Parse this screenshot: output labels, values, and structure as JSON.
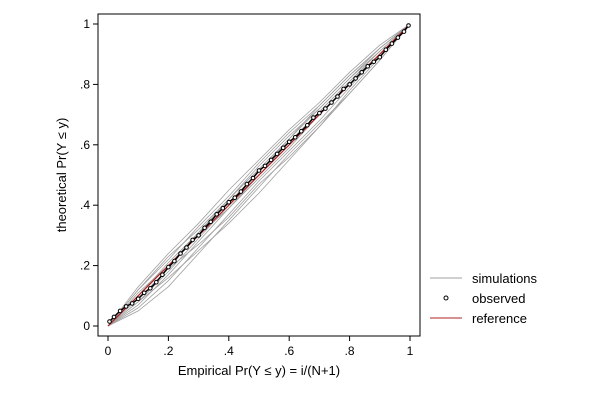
{
  "chart_data": {
    "type": "line",
    "xlabel": "Empirical Pr(Y ≤ y) = i/(N+1)",
    "ylabel": "theoretical Pr(Y ≤ y)",
    "xlim": [
      0,
      1
    ],
    "ylim": [
      0,
      1
    ],
    "x_ticks": [
      {
        "value": 0,
        "label": "0"
      },
      {
        "value": 0.2,
        "label": ".2"
      },
      {
        "value": 0.4,
        "label": ".4"
      },
      {
        "value": 0.6,
        "label": ".6"
      },
      {
        "value": 0.8,
        "label": ".8"
      },
      {
        "value": 1,
        "label": "1"
      }
    ],
    "y_ticks": [
      {
        "value": 0,
        "label": "0"
      },
      {
        "value": 0.2,
        "label": ".2"
      },
      {
        "value": 0.4,
        "label": ".4"
      },
      {
        "value": 0.6,
        "label": ".6"
      },
      {
        "value": 0.8,
        "label": ".8"
      },
      {
        "value": 1,
        "label": "1"
      }
    ],
    "grid": false,
    "legend_position": "right",
    "legend": [
      {
        "label": "simulations",
        "style": "line",
        "color": "#a0a0a0"
      },
      {
        "label": "observed",
        "style": "marker",
        "color": "#000000"
      },
      {
        "label": "reference",
        "style": "line",
        "color": "#b22222"
      }
    ],
    "series": [
      {
        "name": "reference",
        "color": "#b22222",
        "x": [
          0,
          1
        ],
        "y": [
          0,
          1
        ]
      },
      {
        "name": "observed",
        "color": "#000000",
        "x": [
          0.005,
          0.02,
          0.04,
          0.06,
          0.08,
          0.1,
          0.12,
          0.14,
          0.16,
          0.18,
          0.2,
          0.22,
          0.24,
          0.26,
          0.28,
          0.3,
          0.32,
          0.34,
          0.36,
          0.38,
          0.4,
          0.42,
          0.44,
          0.46,
          0.48,
          0.5,
          0.52,
          0.54,
          0.56,
          0.58,
          0.6,
          0.62,
          0.64,
          0.66,
          0.68,
          0.7,
          0.72,
          0.74,
          0.76,
          0.78,
          0.8,
          0.82,
          0.84,
          0.86,
          0.88,
          0.9,
          0.92,
          0.94,
          0.96,
          0.98,
          0.995
        ],
        "y": [
          0.015,
          0.03,
          0.05,
          0.065,
          0.075,
          0.09,
          0.11,
          0.125,
          0.145,
          0.17,
          0.195,
          0.215,
          0.24,
          0.26,
          0.285,
          0.3,
          0.325,
          0.345,
          0.37,
          0.39,
          0.41,
          0.425,
          0.445,
          0.47,
          0.49,
          0.515,
          0.53,
          0.55,
          0.57,
          0.59,
          0.61,
          0.625,
          0.645,
          0.665,
          0.69,
          0.705,
          0.72,
          0.74,
          0.76,
          0.785,
          0.8,
          0.82,
          0.84,
          0.86,
          0.875,
          0.89,
          0.915,
          0.935,
          0.955,
          0.975,
          0.995
        ]
      }
    ],
    "simulations": [
      {
        "x": [
          0,
          0.1,
          0.2,
          0.3,
          0.4,
          0.5,
          0.6,
          0.7,
          0.8,
          0.9,
          1
        ],
        "y": [
          0,
          0.05,
          0.13,
          0.24,
          0.35,
          0.46,
          0.57,
          0.67,
          0.77,
          0.88,
          1
        ]
      },
      {
        "x": [
          0,
          0.1,
          0.2,
          0.3,
          0.4,
          0.5,
          0.6,
          0.7,
          0.8,
          0.9,
          1
        ],
        "y": [
          0,
          0.06,
          0.15,
          0.26,
          0.37,
          0.48,
          0.58,
          0.68,
          0.79,
          0.9,
          1
        ]
      },
      {
        "x": [
          0,
          0.1,
          0.2,
          0.3,
          0.4,
          0.5,
          0.6,
          0.7,
          0.8,
          0.9,
          1
        ],
        "y": [
          0,
          0.07,
          0.17,
          0.28,
          0.39,
          0.5,
          0.6,
          0.71,
          0.81,
          0.91,
          1
        ]
      },
      {
        "x": [
          0,
          0.1,
          0.2,
          0.3,
          0.4,
          0.5,
          0.6,
          0.7,
          0.8,
          0.9,
          1
        ],
        "y": [
          0,
          0.08,
          0.18,
          0.29,
          0.4,
          0.5,
          0.61,
          0.71,
          0.81,
          0.9,
          1
        ]
      },
      {
        "x": [
          0,
          0.1,
          0.2,
          0.3,
          0.4,
          0.5,
          0.6,
          0.7,
          0.8,
          0.9,
          1
        ],
        "y": [
          0,
          0.1,
          0.21,
          0.31,
          0.42,
          0.52,
          0.62,
          0.72,
          0.82,
          0.91,
          1
        ]
      },
      {
        "x": [
          0,
          0.1,
          0.2,
          0.3,
          0.4,
          0.5,
          0.6,
          0.7,
          0.8,
          0.9,
          1
        ],
        "y": [
          0,
          0.12,
          0.22,
          0.33,
          0.43,
          0.54,
          0.64,
          0.73,
          0.83,
          0.92,
          1
        ]
      },
      {
        "x": [
          0,
          0.1,
          0.2,
          0.3,
          0.4,
          0.5,
          0.6,
          0.7,
          0.8,
          0.9,
          1
        ],
        "y": [
          0,
          0.13,
          0.24,
          0.34,
          0.45,
          0.55,
          0.65,
          0.74,
          0.84,
          0.93,
          1
        ]
      },
      {
        "x": [
          0,
          0.1,
          0.2,
          0.3,
          0.4,
          0.5,
          0.6,
          0.7,
          0.8,
          0.9,
          1
        ],
        "y": [
          0,
          0.11,
          0.2,
          0.3,
          0.39,
          0.49,
          0.59,
          0.7,
          0.8,
          0.9,
          1
        ]
      },
      {
        "x": [
          0,
          0.1,
          0.2,
          0.3,
          0.4,
          0.5,
          0.6,
          0.7,
          0.8,
          0.9,
          1
        ],
        "y": [
          0,
          0.09,
          0.19,
          0.27,
          0.36,
          0.47,
          0.56,
          0.66,
          0.78,
          0.89,
          1
        ]
      },
      {
        "x": [
          0,
          0.1,
          0.2,
          0.3,
          0.4,
          0.5,
          0.6,
          0.7,
          0.8,
          0.9,
          1
        ],
        "y": [
          0,
          0.1,
          0.2,
          0.31,
          0.41,
          0.51,
          0.62,
          0.73,
          0.83,
          0.92,
          1
        ]
      },
      {
        "x": [
          0,
          0.1,
          0.2,
          0.3,
          0.4,
          0.5,
          0.6,
          0.7,
          0.8,
          0.9,
          1
        ],
        "y": [
          0,
          0.08,
          0.16,
          0.25,
          0.34,
          0.44,
          0.55,
          0.66,
          0.77,
          0.88,
          1
        ]
      },
      {
        "x": [
          0,
          0.1,
          0.2,
          0.3,
          0.4,
          0.5,
          0.6,
          0.7,
          0.8,
          0.9,
          1
        ],
        "y": [
          0,
          0.12,
          0.23,
          0.32,
          0.42,
          0.53,
          0.63,
          0.72,
          0.82,
          0.92,
          1
        ]
      }
    ]
  }
}
